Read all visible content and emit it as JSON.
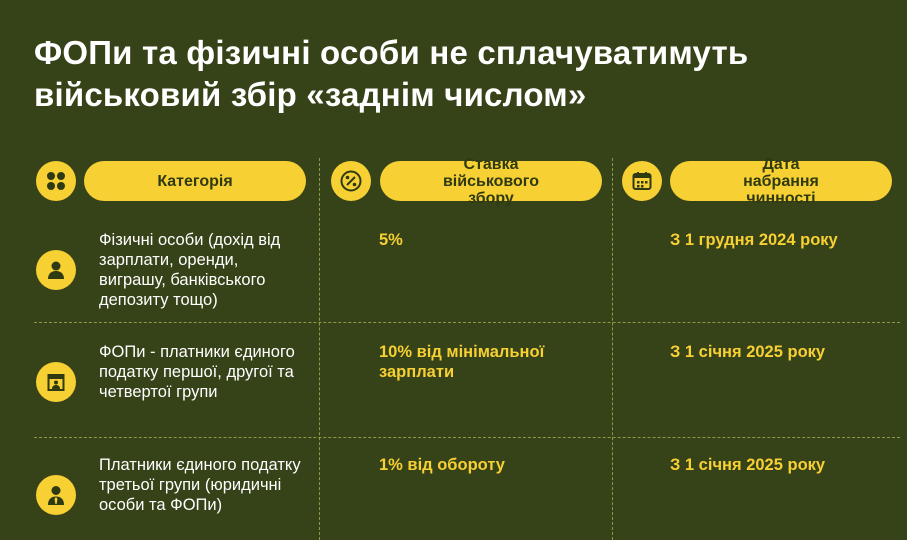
{
  "title": "ФОПи та фізичні особи не сплачуватимуть військовий збір «заднім числом»",
  "headers": {
    "category": "Категорія",
    "rate": "Ставка військового збору",
    "date": "Дата набрання чинності"
  },
  "header_icons": [
    "grid-icon",
    "percent-icon",
    "calendar-icon"
  ],
  "rows": [
    {
      "icon": "person-icon",
      "category": "Фізичні особи (дохід від зарплати, оренди, виграшу, банківського депозиту тощо)",
      "rate": "5%",
      "date": "З 1 грудня 2024 року"
    },
    {
      "icon": "shop-person-icon",
      "category": "ФОПи - платники єдиного податку першої, другої та четвертої групи",
      "rate": "10% від мінімальної зарплати",
      "date": "З 1 січня 2025 року"
    },
    {
      "icon": "businessman-icon",
      "category": "Платники єдиного податку третьої групи (юридичні особи та ФОПи)",
      "rate": "1% від обороту",
      "date": "З 1 січня 2025 року"
    }
  ],
  "colors": {
    "background": "#364217",
    "accent": "#f7d033",
    "text": "#ffffff",
    "divider": "#8e9a4a"
  }
}
